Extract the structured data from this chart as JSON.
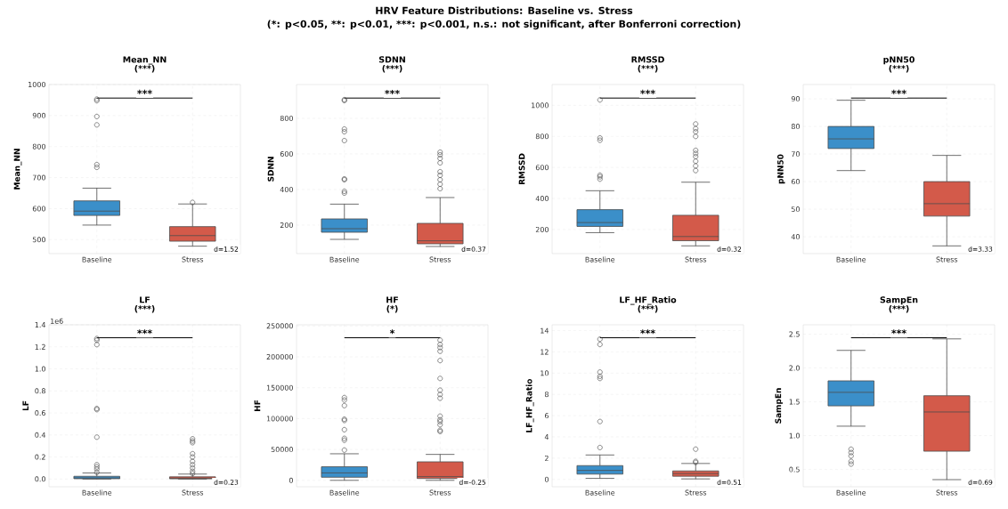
{
  "chart_data": [
    {
      "type": "other",
      "title": "HRV Feature Distributions: Baseline vs. Stress",
      "annotations": [
        "(*: p<0.05,",
        "**: p<0.01,",
        "***: p<0.001,",
        "n.s.: not significant, after Bonferroni correction)"
      ]
    },
    {
      "type": "box",
      "title": "Mean_NN",
      "subtitle": "(***)",
      "ylabel": "Mean_NN",
      "categories": [
        "Baseline",
        "Stress"
      ],
      "colors": [
        "#3b8fc9",
        "#d35a4a"
      ],
      "grid": true,
      "ylim": [
        455,
        1000
      ],
      "yticks": [
        500,
        600,
        700,
        800,
        900,
        1000
      ],
      "annotations": [
        "***",
        "d=1.52"
      ],
      "boxes": [
        {
          "low": 547,
          "q1": 578,
          "median": 592,
          "q3": 625,
          "high": 666,
          "outliers": [
            733,
            742,
            870,
            897,
            948,
            953
          ]
        },
        {
          "low": 479,
          "q1": 495,
          "median": 513,
          "q3": 542,
          "high": 615,
          "outliers": [
            620
          ]
        }
      ]
    },
    {
      "type": "box",
      "title": "SDNN",
      "subtitle": "(***)",
      "ylabel": "SDNN",
      "categories": [
        "Baseline",
        "Stress"
      ],
      "colors": [
        "#3b8fc9",
        "#d35a4a"
      ],
      "grid": true,
      "ylim": [
        40,
        990
      ],
      "yticks": [
        200,
        400,
        600,
        800
      ],
      "annotations": [
        "***",
        "d=0.37"
      ],
      "boxes": [
        {
          "low": 120,
          "q1": 160,
          "median": 180,
          "q3": 235,
          "high": 318,
          "outliers": [
            380,
            390,
            455,
            460,
            675,
            725,
            740,
            900,
            905
          ]
        },
        {
          "low": 80,
          "q1": 95,
          "median": 112,
          "q3": 210,
          "high": 355,
          "outliers": [
            405,
            430,
            455,
            480,
            500,
            550,
            575,
            595,
            610
          ]
        }
      ]
    },
    {
      "type": "box",
      "title": "RMSSD",
      "subtitle": "(***)",
      "ylabel": "RMSSD",
      "categories": [
        "Baseline",
        "Stress"
      ],
      "colors": [
        "#3b8fc9",
        "#d35a4a"
      ],
      "grid": true,
      "ylim": [
        45,
        1134
      ],
      "yticks": [
        200,
        400,
        600,
        800,
        1000
      ],
      "annotations": [
        "***",
        "d=0.32"
      ],
      "boxes": [
        {
          "low": 180,
          "q1": 220,
          "median": 245,
          "q3": 328,
          "high": 450,
          "outliers": [
            525,
            540,
            550,
            775,
            790,
            1035
          ]
        },
        {
          "low": 95,
          "q1": 128,
          "median": 155,
          "q3": 292,
          "high": 505,
          "outliers": [
            580,
            610,
            640,
            670,
            690,
            710,
            800,
            830,
            850,
            880
          ]
        }
      ]
    },
    {
      "type": "box",
      "title": "pNN50",
      "subtitle": "(***)",
      "ylabel": "pNN50",
      "categories": [
        "Baseline",
        "Stress"
      ],
      "colors": [
        "#3b8fc9",
        "#d35a4a"
      ],
      "grid": true,
      "ylim": [
        33.9,
        95.2
      ],
      "yticks": [
        40,
        50,
        60,
        70,
        80,
        90
      ],
      "annotations": [
        "***",
        "d=3.33"
      ],
      "boxes": [
        {
          "low": 64,
          "q1": 72,
          "median": 75.5,
          "q3": 80,
          "high": 89.5
        },
        {
          "low": 36.7,
          "q1": 47.5,
          "median": 52,
          "q3": 60,
          "high": 69.5
        }
      ]
    },
    {
      "type": "box",
      "title": "LF",
      "subtitle": "(***)",
      "ylabel": "LF",
      "categories": [
        "Baseline",
        "Stress"
      ],
      "colors": [
        "#3b8fc9",
        "#d35a4a"
      ],
      "grid": true,
      "ylim": [
        -0.07,
        1.4
      ],
      "yticks": [
        {
          "value": 0,
          "label": "0.0"
        },
        0.2,
        0.4,
        0.6,
        0.8,
        {
          "value": 1,
          "label": "1.0"
        },
        1.2,
        1.4
      ],
      "annotations": [
        "***",
        "d=0.23",
        "1e6"
      ],
      "boxes": [
        {
          "low": 0,
          "q1": 0.003,
          "median": 0.01,
          "q3": 0.025,
          "high": 0.055,
          "outliers": [
            0.06,
            0.09,
            0.11,
            0.13,
            0.38,
            0.63,
            0.64,
            1.22,
            1.26,
            1.275
          ]
        },
        {
          "low": 0,
          "q1": 0.002,
          "median": 0.008,
          "q3": 0.02,
          "high": 0.045,
          "outliers": [
            0.05,
            0.07,
            0.1,
            0.13,
            0.16,
            0.2,
            0.23,
            0.33,
            0.345,
            0.365
          ]
        }
      ]
    },
    {
      "type": "box",
      "title": "HF",
      "subtitle": "(*)",
      "ylabel": "HF",
      "categories": [
        "Baseline",
        "Stress"
      ],
      "colors": [
        "#3b8fc9",
        "#d35a4a"
      ],
      "grid": true,
      "ylim": [
        -10400,
        251900
      ],
      "yticks": [
        0,
        50000,
        100000,
        150000,
        200000,
        250000
      ],
      "annotations": [
        "*",
        "d=-0.25"
      ],
      "boxes": [
        {
          "low": 0,
          "q1": 5000,
          "median": 12000,
          "q3": 22000,
          "high": 43000,
          "outliers": [
            49000,
            65000,
            68000,
            82000,
            97000,
            99000,
            121000,
            130000,
            134000
          ]
        },
        {
          "low": 0,
          "q1": 3000,
          "median": 6000,
          "q3": 30000,
          "high": 42000,
          "outliers": [
            79000,
            81000,
            90000,
            95000,
            98000,
            104000,
            133000,
            139000,
            146000,
            165000,
            194000,
            209000,
            215000,
            220000,
            227000
          ]
        }
      ]
    },
    {
      "type": "box",
      "title": "LF_HF_Ratio",
      "subtitle": "(***)",
      "ylabel": "LF_HF_Ratio",
      "categories": [
        "Baseline",
        "Stress"
      ],
      "colors": [
        "#3b8fc9",
        "#d35a4a"
      ],
      "grid": true,
      "ylim": [
        -0.69,
        14.55
      ],
      "yticks": [
        0,
        2,
        4,
        6,
        8,
        10,
        12,
        14
      ],
      "annotations": [
        "***",
        "d=0.51"
      ],
      "boxes": [
        {
          "low": 0.1,
          "q1": 0.5,
          "median": 0.85,
          "q3": 1.3,
          "high": 2.3,
          "outliers": [
            3.0,
            5.45,
            9.5,
            9.7,
            10.1,
            12.7,
            13.2
          ]
        },
        {
          "low": 0.05,
          "q1": 0.3,
          "median": 0.55,
          "q3": 0.8,
          "high": 1.5,
          "outliers": [
            1.6,
            1.7,
            2.85
          ]
        }
      ]
    },
    {
      "type": "box",
      "title": "SampEn",
      "subtitle": "(***)",
      "ylabel": "SampEn",
      "categories": [
        "Baseline",
        "Stress"
      ],
      "colors": [
        "#3b8fc9",
        "#d35a4a"
      ],
      "grid": true,
      "ylim": [
        0.245,
        2.638
      ],
      "yticks": [
        0.5,
        {
          "value": 1,
          "label": "1.0"
        },
        1.5,
        {
          "value": 2,
          "label": "2.0"
        },
        2.5
      ],
      "annotations": [
        "***",
        "d=0.69"
      ],
      "boxes": [
        {
          "low": 1.14,
          "q1": 1.44,
          "median": 1.64,
          "q3": 1.81,
          "high": 2.26,
          "outliers": [
            0.58,
            0.62,
            0.7,
            0.75,
            0.8
          ]
        },
        {
          "low": 0.35,
          "q1": 0.77,
          "median": 1.35,
          "q3": 1.59,
          "high": 2.43
        }
      ]
    }
  ]
}
